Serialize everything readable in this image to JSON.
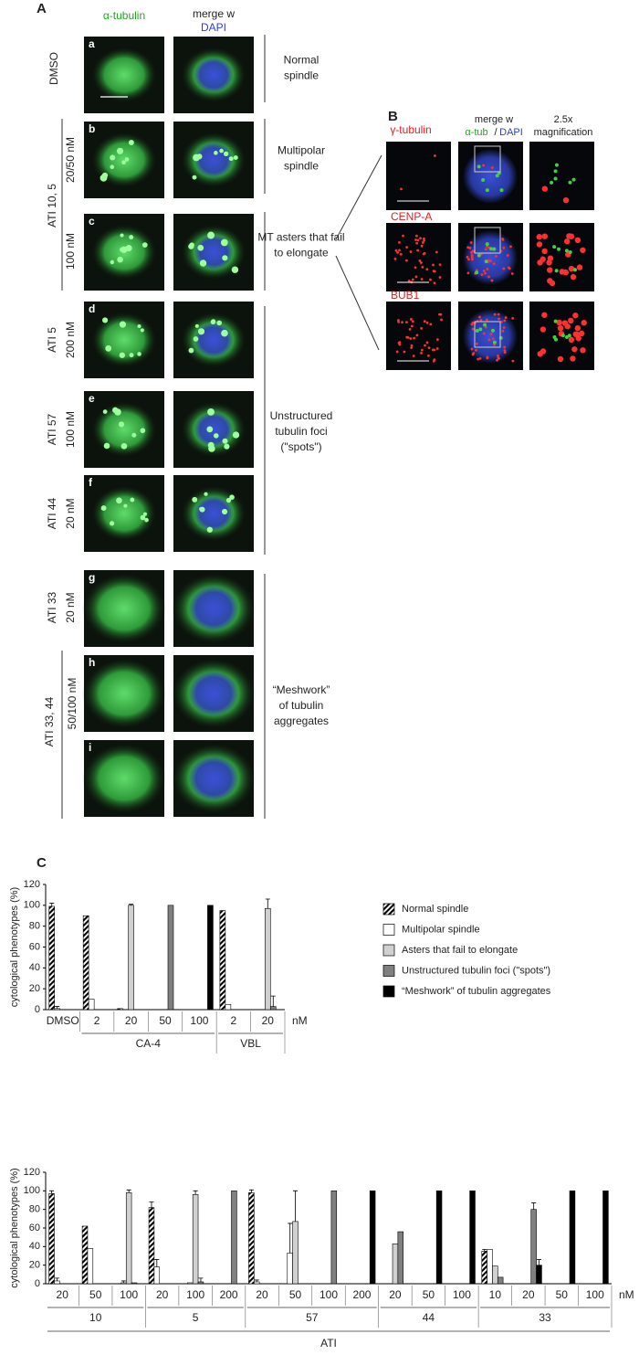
{
  "panel_a": {
    "label": "A",
    "headers": {
      "tubulin": "α-tubulin",
      "merge": "merge w",
      "dapi": "DAPI"
    },
    "rows": [
      "a",
      "b",
      "c",
      "d",
      "e",
      "f",
      "g",
      "h",
      "i"
    ],
    "treatments": [
      "DMSO",
      "ATI 10, 5",
      "20/50 nM",
      "100 nM",
      "ATI 5",
      "200 nM",
      "ATI 57",
      "100 nM",
      "ATI 44",
      "20 nM",
      "ATI 33",
      "20 nM",
      "ATI 33, 44",
      "50/100 nM"
    ],
    "phenotypes": [
      [
        "Normal",
        "spindle"
      ],
      [
        "Multipolar",
        "spindle"
      ],
      [
        "MT asters that fail",
        "to elongate"
      ],
      [
        "Unstructured",
        "tubulin foci",
        "(\"spots\")"
      ],
      [
        "“Meshwork”",
        "of tubulin",
        "aggregates"
      ]
    ]
  },
  "panel_b": {
    "label": "B",
    "headers": {
      "merge": "merge w",
      "tub": "α-tub",
      "slash": "/",
      "dapi": "DAPI",
      "mag1": "2.5x",
      "mag2": "magnification"
    },
    "stains": [
      "γ-tubulin",
      "CENP-A",
      "BUB1"
    ]
  },
  "panel_c": {
    "label": "C"
  },
  "chart_data": [
    {
      "type": "bar",
      "ylabel": "cytological phenotypes (%)",
      "ylim": [
        0,
        120
      ],
      "yticks": [
        0,
        20,
        40,
        60,
        80,
        100,
        120
      ],
      "unit": "nM",
      "groups": [
        {
          "categories": [
            "DMSO"
          ]
        },
        {
          "name": "CA-4",
          "categories": [
            "2",
            "20",
            "50",
            "100"
          ]
        },
        {
          "name": "VBL",
          "categories": [
            "2",
            "20"
          ]
        }
      ],
      "series": [
        {
          "name": "Normal spindle",
          "color": "#000000",
          "pattern": "hatch",
          "values": [
            99,
            90,
            1,
            0,
            0,
            95,
            0
          ],
          "errors": [
            3,
            null,
            null,
            null,
            null,
            null,
            null
          ]
        },
        {
          "name": "Multipolar spindle",
          "color": "#ffffff",
          "values": [
            1,
            10,
            0,
            0,
            0,
            5,
            0
          ],
          "errors": [
            2,
            null,
            null,
            null,
            null,
            null,
            null
          ]
        },
        {
          "name": "Asters that fail to elongate",
          "color": "#d0d0d0",
          "values": [
            0,
            0,
            100,
            0,
            0,
            0,
            97
          ],
          "errors": [
            null,
            null,
            1,
            null,
            null,
            null,
            9
          ]
        },
        {
          "name": "Unstructured tubulin foci (\"spots\")",
          "color": "#808080",
          "values": [
            0,
            0,
            0,
            100,
            0,
            0,
            3
          ],
          "errors": [
            null,
            null,
            null,
            null,
            null,
            null,
            10
          ]
        },
        {
          "name": "“Meshwork” of tubulin aggregates",
          "color": "#000000",
          "values": [
            0,
            0,
            0,
            0,
            100,
            0,
            0
          ],
          "errors": [
            null,
            null,
            null,
            null,
            null,
            null,
            null
          ]
        }
      ]
    },
    {
      "type": "bar",
      "ylabel": "cytological phenotypes (%)",
      "ylim": [
        0,
        120
      ],
      "yticks": [
        0,
        20,
        40,
        60,
        80,
        100,
        120
      ],
      "unit": "nM",
      "xlabel": "ATI",
      "groups": [
        {
          "name": "10",
          "categories": [
            "20",
            "50",
            "100"
          ]
        },
        {
          "name": "5",
          "categories": [
            "20",
            "100",
            "200"
          ]
        },
        {
          "name": "57",
          "categories": [
            "20",
            "50",
            "100",
            "200"
          ]
        },
        {
          "name": "44",
          "categories": [
            "20",
            "50",
            "100"
          ]
        },
        {
          "name": "33",
          "categories": [
            "10",
            "20",
            "50",
            "100"
          ]
        }
      ],
      "series": [
        {
          "color": "#000000",
          "pattern": "hatch",
          "values": [
            97,
            62,
            0,
            82,
            0,
            0,
            98,
            0,
            0,
            0,
            0,
            0,
            0,
            35,
            0,
            0,
            0
          ],
          "errors": [
            3,
            null,
            null,
            6,
            null,
            null,
            3,
            null,
            null,
            null,
            null,
            null,
            null,
            2,
            null,
            null,
            null
          ]
        },
        {
          "color": "#ffffff",
          "values": [
            3,
            38,
            1,
            18,
            1,
            0,
            2,
            33,
            0,
            0,
            0,
            0,
            0,
            37,
            0,
            0,
            0
          ],
          "errors": [
            3,
            null,
            2,
            8,
            null,
            null,
            2,
            32,
            null,
            null,
            null,
            null,
            null,
            null,
            null,
            null,
            null
          ]
        },
        {
          "color": "#d0d0d0",
          "values": [
            0,
            0,
            98,
            0,
            96,
            0,
            0,
            67,
            0,
            0,
            43,
            0,
            0,
            19,
            0,
            0,
            0
          ],
          "errors": [
            null,
            null,
            3,
            null,
            4,
            null,
            null,
            33,
            null,
            null,
            null,
            null,
            null,
            null,
            null,
            null,
            null
          ]
        },
        {
          "color": "#808080",
          "values": [
            0,
            0,
            1,
            0,
            2,
            100,
            0,
            0,
            100,
            0,
            56,
            0,
            0,
            7,
            80,
            0,
            0
          ],
          "errors": [
            null,
            null,
            null,
            null,
            4,
            null,
            null,
            null,
            null,
            null,
            null,
            null,
            null,
            null,
            7,
            null,
            null
          ]
        },
        {
          "color": "#000000",
          "values": [
            0,
            0,
            0,
            0,
            0,
            0,
            0,
            0,
            0,
            100,
            0,
            100,
            100,
            0,
            20,
            100,
            100
          ],
          "errors": [
            null,
            null,
            null,
            null,
            null,
            null,
            null,
            null,
            null,
            null,
            null,
            null,
            null,
            null,
            6,
            null,
            null
          ]
        }
      ]
    }
  ]
}
